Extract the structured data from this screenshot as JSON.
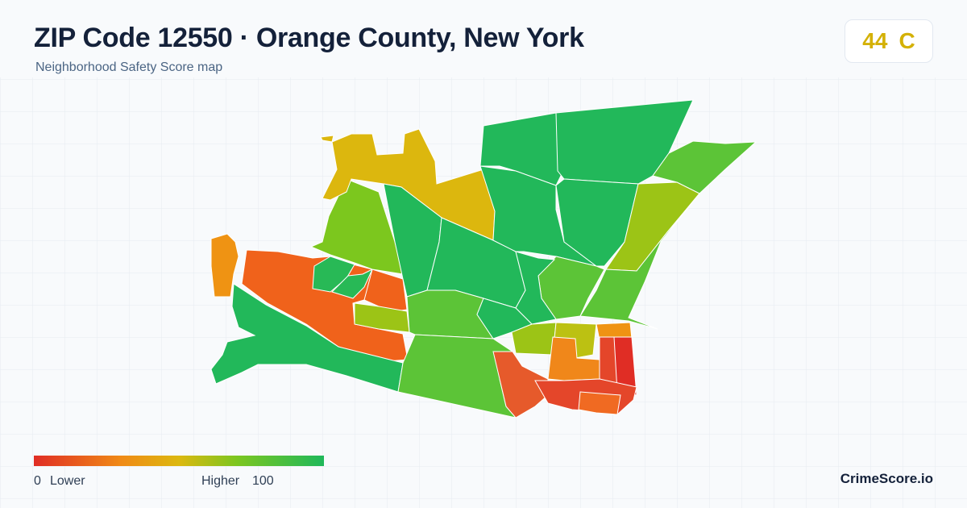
{
  "header": {
    "title": "ZIP Code 12550 · Orange County, New York",
    "subtitle": "Neighborhood Safety Score map"
  },
  "badge": {
    "score": 44,
    "grade": "C"
  },
  "legend": {
    "min": 0,
    "min_label": "Lower",
    "max_label": "Higher",
    "max": 100
  },
  "brand": "CrimeScore.io"
}
